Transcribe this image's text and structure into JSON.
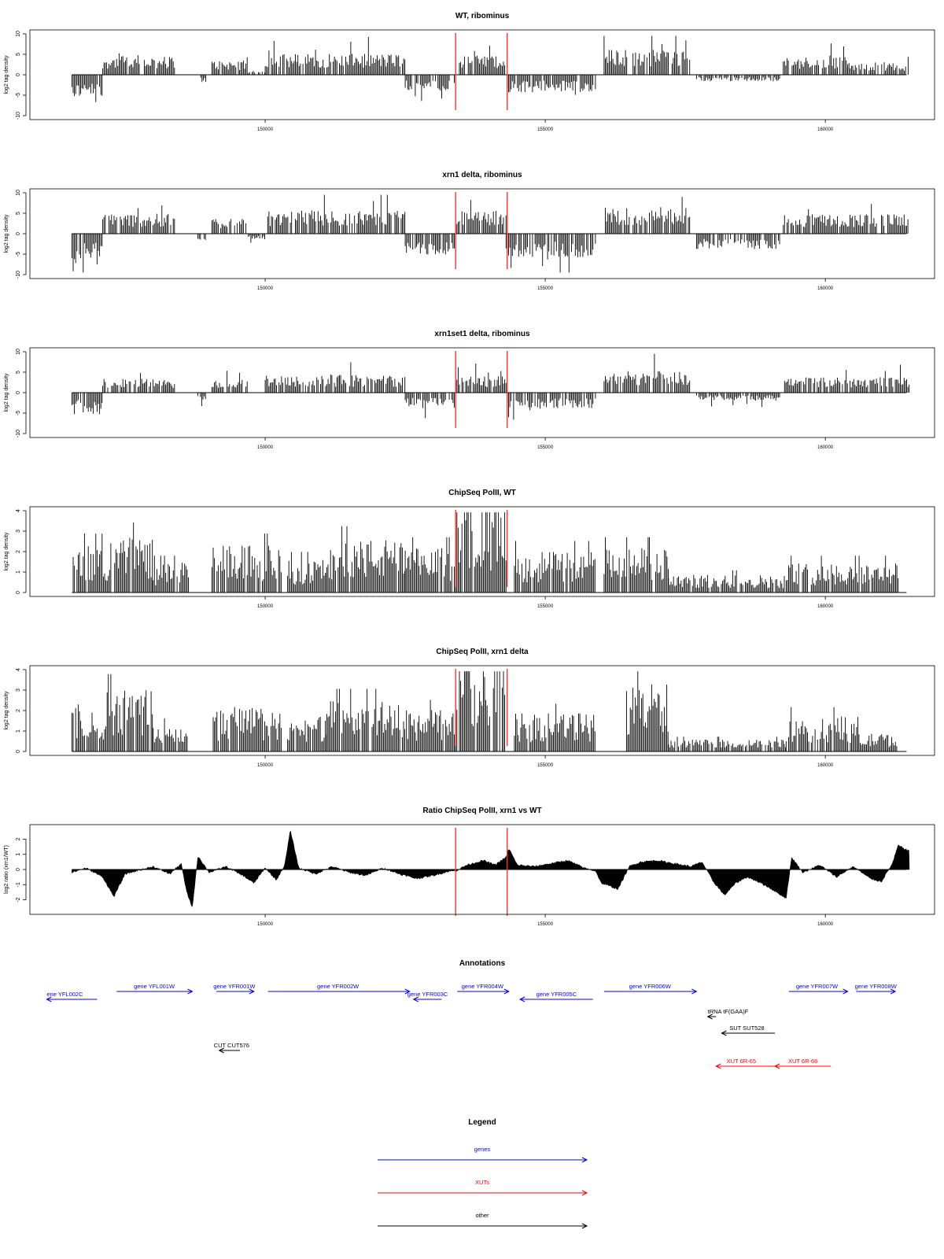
{
  "axis": {
    "xlim": [
      145800,
      161950
    ],
    "x_ticks": [
      150000,
      155000,
      160000
    ],
    "x_tick_labels": [
      "150000",
      "155000",
      "160000"
    ]
  },
  "markers": {
    "x": [
      153400,
      154320
    ],
    "color": "#ff3333"
  },
  "chart_data": [
    {
      "type": "bar",
      "title": "WT, ribominus",
      "ylabel": "log2 tag density",
      "ylim": [
        -10,
        10
      ],
      "yticks": [
        -10,
        -5,
        0,
        5,
        10
      ],
      "ytick_labels": [
        "-10",
        "-5",
        "0",
        "5",
        "10"
      ],
      "segments": [
        {
          "x": [
            146550,
            147100
          ],
          "level": -4.2
        },
        {
          "x": [
            147100,
            148400
          ],
          "level": 3.3
        },
        {
          "x": [
            148850,
            148950
          ],
          "level": -1.5
        },
        {
          "x": [
            149050,
            149700
          ],
          "level": 2.6
        },
        {
          "x": [
            149700,
            150000
          ],
          "level": 0.8
        },
        {
          "x": [
            150000,
            152500
          ],
          "level": 3.8
        },
        {
          "x": [
            152500,
            153400
          ],
          "level": -3.1
        },
        {
          "x": [
            153400,
            154300
          ],
          "level": 3.5
        },
        {
          "x": [
            154300,
            155900
          ],
          "level": -3.2
        },
        {
          "x": [
            156050,
            157600
          ],
          "level": 4.6
        },
        {
          "x": [
            157700,
            159200
          ],
          "level": -1.2
        },
        {
          "x": [
            159250,
            160400
          ],
          "level": 3.2
        },
        {
          "x": [
            160400,
            161500
          ],
          "level": 2.1
        }
      ]
    },
    {
      "type": "bar",
      "title": "xrn1 delta, ribominus",
      "ylabel": "log2 tag density",
      "ylim": [
        -10,
        10
      ],
      "yticks": [
        -10,
        -5,
        0,
        5,
        10
      ],
      "ytick_labels": [
        "-10",
        "-5",
        "0",
        "5",
        "10"
      ],
      "segments": [
        {
          "x": [
            146550,
            147100
          ],
          "level": -4.8
        },
        {
          "x": [
            147100,
            148400
          ],
          "level": 3.6
        },
        {
          "x": [
            148800,
            148950
          ],
          "level": -1.2
        },
        {
          "x": [
            149050,
            149700
          ],
          "level": 3.0
        },
        {
          "x": [
            149700,
            150000
          ],
          "level": -1.0
        },
        {
          "x": [
            150000,
            152500
          ],
          "level": 4.2
        },
        {
          "x": [
            152500,
            153400
          ],
          "level": -3.8
        },
        {
          "x": [
            153400,
            154300
          ],
          "level": 4.2
        },
        {
          "x": [
            154300,
            155900
          ],
          "level": -4.3
        },
        {
          "x": [
            156050,
            157600
          ],
          "level": 4.8
        },
        {
          "x": [
            157700,
            159200
          ],
          "level": -2.8
        },
        {
          "x": [
            159250,
            161500
          ],
          "level": 3.6
        }
      ]
    },
    {
      "type": "bar",
      "title": "xrn1set1 delta, ribominus",
      "ylabel": "log2 tag density",
      "ylim": [
        -10,
        10
      ],
      "yticks": [
        -10,
        -5,
        0,
        5,
        10
      ],
      "ytick_labels": [
        "-10",
        "-5",
        "0",
        "5",
        "10"
      ],
      "segments": [
        {
          "x": [
            146550,
            147100
          ],
          "level": -3.9
        },
        {
          "x": [
            147100,
            148400
          ],
          "level": 2.5
        },
        {
          "x": [
            148800,
            148950
          ],
          "level": -1.3
        },
        {
          "x": [
            149050,
            149700
          ],
          "level": 2.4
        },
        {
          "x": [
            150000,
            152500
          ],
          "level": 3.2
        },
        {
          "x": [
            152500,
            153400
          ],
          "level": -2.8
        },
        {
          "x": [
            153400,
            154300
          ],
          "level": 3.0
        },
        {
          "x": [
            154300,
            155900
          ],
          "level": -3.0
        },
        {
          "x": [
            156050,
            157600
          ],
          "level": 4.0
        },
        {
          "x": [
            157700,
            159200
          ],
          "level": -1.4
        },
        {
          "x": [
            159250,
            161500
          ],
          "level": 2.8
        }
      ]
    },
    {
      "type": "bar",
      "title": "ChipSeq PolII, WT",
      "ylabel": "log2 tag density",
      "ylim": [
        0,
        4
      ],
      "yticks": [
        0,
        1,
        2,
        3,
        4
      ],
      "ytick_labels": [
        "0",
        "1",
        "2",
        "3",
        "4"
      ],
      "segments": [
        {
          "x": [
            146550,
            147200
          ],
          "level": 1.6
        },
        {
          "x": [
            147200,
            148000
          ],
          "level": 1.9
        },
        {
          "x": [
            148000,
            148650
          ],
          "level": 1.0
        },
        {
          "x": [
            149050,
            150300
          ],
          "level": 1.6
        },
        {
          "x": [
            150400,
            151100
          ],
          "level": 1.1
        },
        {
          "x": [
            151100,
            152500
          ],
          "level": 1.8
        },
        {
          "x": [
            152500,
            153400
          ],
          "level": 1.5
        },
        {
          "x": [
            153400,
            154300
          ],
          "level": 3.0
        },
        {
          "x": [
            154450,
            155900
          ],
          "level": 1.4
        },
        {
          "x": [
            156050,
            157200
          ],
          "level": 1.5
        },
        {
          "x": [
            157200,
            159300
          ],
          "level": 0.6
        },
        {
          "x": [
            159300,
            161300
          ],
          "level": 1.0
        }
      ]
    },
    {
      "type": "bar",
      "title": "ChipSeq PolII, xrn1 delta",
      "ylabel": "log2 tag density",
      "ylim": [
        0,
        4
      ],
      "yticks": [
        0,
        1,
        2,
        3,
        4
      ],
      "ytick_labels": [
        "0",
        "1",
        "2",
        "3",
        "4"
      ],
      "segments": [
        {
          "x": [
            146550,
            147200
          ],
          "level": 1.6
        },
        {
          "x": [
            147200,
            148000
          ],
          "level": 2.1
        },
        {
          "x": [
            148000,
            148650
          ],
          "level": 0.9
        },
        {
          "x": [
            149050,
            150300
          ],
          "level": 1.5
        },
        {
          "x": [
            150400,
            151100
          ],
          "level": 1.2
        },
        {
          "x": [
            151100,
            152500
          ],
          "level": 1.7
        },
        {
          "x": [
            152500,
            153400
          ],
          "level": 1.4
        },
        {
          "x": [
            153400,
            154300
          ],
          "level": 3.2
        },
        {
          "x": [
            154450,
            155900
          ],
          "level": 1.3
        },
        {
          "x": [
            156450,
            157200
          ],
          "level": 2.3
        },
        {
          "x": [
            157200,
            159300
          ],
          "level": 0.4
        },
        {
          "x": [
            159300,
            160600
          ],
          "level": 1.2
        },
        {
          "x": [
            160600,
            161300
          ],
          "level": 0.6
        }
      ]
    },
    {
      "type": "area",
      "title": "Ratio ChipSeq PolII, xrn1 vs WT",
      "ylabel": "log2 ratio (xrn1/WT)",
      "ylim": [
        -2.7,
        2.7
      ],
      "yticks": [
        -2,
        -1,
        0,
        1,
        2
      ],
      "ytick_labels": [
        "-2",
        "-1",
        "0",
        "1",
        "2"
      ],
      "x": [
        146550,
        146800,
        147100,
        147300,
        147500,
        147700,
        148000,
        148300,
        148500,
        148600,
        148700,
        148800,
        149000,
        149300,
        149600,
        149800,
        150000,
        150200,
        150350,
        150450,
        150600,
        150900,
        151200,
        151500,
        151800,
        152100,
        152400,
        152700,
        153000,
        153300,
        153400,
        153600,
        153900,
        154100,
        154300,
        154350,
        154500,
        154800,
        155100,
        155400,
        155700,
        155900,
        156000,
        156300,
        156500,
        156700,
        157000,
        157300,
        157600,
        157800,
        158000,
        158200,
        158400,
        158600,
        158800,
        159000,
        159300,
        159400,
        159600,
        159900,
        160200,
        160500,
        160800,
        161000,
        161200,
        161300,
        161500
      ],
      "y": [
        -0.2,
        0.1,
        -0.5,
        -1.8,
        -0.3,
        -0.1,
        0.2,
        -0.3,
        0.4,
        -1.5,
        -2.5,
        0.9,
        -0.2,
        0.2,
        -0.4,
        -0.9,
        0.1,
        -0.7,
        0.3,
        2.6,
        0.1,
        -0.3,
        0.2,
        -0.2,
        -0.4,
        0.1,
        -0.3,
        -0.6,
        -0.4,
        -0.1,
        -0.1,
        0.3,
        0.6,
        0.3,
        0.8,
        1.4,
        0.3,
        0.2,
        0.4,
        0.6,
        0.1,
        -0.1,
        -0.9,
        -1.3,
        0.2,
        0.5,
        0.6,
        0.4,
        0.2,
        0.5,
        -0.8,
        -1.7,
        -0.9,
        -0.5,
        -0.8,
        -1.2,
        -1.9,
        0.8,
        -0.2,
        0.3,
        -0.5,
        0.2,
        -0.6,
        -0.8,
        0.4,
        1.6,
        1.2
      ]
    }
  ],
  "annotations": {
    "title": "Annotations",
    "items": [
      {
        "label": "ene YFL002C",
        "start": 146100,
        "end": 147000,
        "dir": "left",
        "color": "#0000ff",
        "row": 1,
        "text_x": 146100,
        "text_anchor": "start"
      },
      {
        "label": "gene YFL001W",
        "start": 147350,
        "end": 148700,
        "dir": "right",
        "color": "#0000ff",
        "row": 0,
        "text_x": 148020,
        "text_anchor": "middle"
      },
      {
        "label": "gene YFR001W",
        "start": 149130,
        "end": 149800,
        "dir": "right",
        "color": "#0000ff",
        "row": 0,
        "text_x": 149450,
        "text_anchor": "middle"
      },
      {
        "label": "gene YFR002W",
        "start": 150050,
        "end": 152580,
        "dir": "right",
        "color": "#0000ff",
        "row": 0,
        "text_x": 151300,
        "text_anchor": "middle"
      },
      {
        "label": "gene YFR003C",
        "start": 152650,
        "end": 153150,
        "dir": "left",
        "color": "#0000ff",
        "row": 1,
        "text_x": 152900,
        "text_anchor": "middle"
      },
      {
        "label": "gene YFR004W",
        "start": 153430,
        "end": 154350,
        "dir": "right",
        "color": "#0000ff",
        "row": 0,
        "text_x": 153880,
        "text_anchor": "middle"
      },
      {
        "label": "gene YFR005C",
        "start": 154550,
        "end": 155850,
        "dir": "left",
        "color": "#0000ff",
        "row": 1,
        "text_x": 155200,
        "text_anchor": "middle"
      },
      {
        "label": "gene YFR006W",
        "start": 156050,
        "end": 157700,
        "dir": "right",
        "color": "#0000ff",
        "row": 0,
        "text_x": 156870,
        "text_anchor": "middle"
      },
      {
        "label": "gene YFR007W",
        "start": 159350,
        "end": 160400,
        "dir": "right",
        "color": "#0000ff",
        "row": 0,
        "text_x": 159850,
        "text_anchor": "middle"
      },
      {
        "label": "gene YFR008W",
        "start": 160550,
        "end": 161250,
        "dir": "right",
        "color": "#0000ff",
        "row": 0,
        "text_x": 160900,
        "text_anchor": "middle"
      },
      {
        "label": "tRNA tF(GAA)F",
        "start": 157900,
        "end": 158050,
        "dir": "left",
        "color": "#000000",
        "row": 2,
        "text_x": 157900,
        "text_anchor": "start"
      },
      {
        "label": "SUT SUT528",
        "start": 158150,
        "end": 159100,
        "dir": "left",
        "color": "#000000",
        "row": 3,
        "text_x": 158600,
        "text_anchor": "middle"
      },
      {
        "label": "CUT CUT576",
        "start": 149180,
        "end": 149550,
        "dir": "left",
        "color": "#000000",
        "row": 4,
        "text_x": 149400,
        "text_anchor": "middle"
      },
      {
        "label": "XUT 6R-65",
        "start": 158050,
        "end": 159100,
        "dir": "left",
        "color": "#ff0000",
        "row": 5,
        "text_x": 158500,
        "text_anchor": "middle"
      },
      {
        "label": "XUT 6R-66",
        "start": 159100,
        "end": 160100,
        "dir": "left",
        "color": "#ff0000",
        "row": 5,
        "text_x": 159600,
        "text_anchor": "middle"
      }
    ]
  },
  "legend": {
    "title": "Legend",
    "items": [
      {
        "label": "genes",
        "color": "#0000ff"
      },
      {
        "label": "XUTs",
        "color": "#ff0000"
      },
      {
        "label": "other",
        "color": "#000000"
      }
    ]
  }
}
